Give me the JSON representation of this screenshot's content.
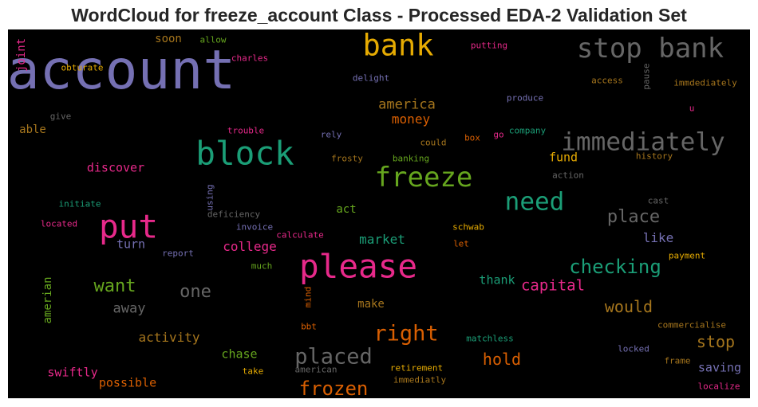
{
  "chart_data": {
    "type": "wordcloud",
    "title": "WordCloud for freeze_account Class - Processed EDA-2 Validation Set",
    "background": "#000000",
    "colormap": "Dark2",
    "words": [
      {
        "text": "account",
        "weight": 1.0,
        "color": "#7570b3"
      },
      {
        "text": "please",
        "weight": 0.6,
        "color": "#e7298a"
      },
      {
        "text": "bank",
        "weight": 0.55,
        "color": "#e6ab02"
      },
      {
        "text": "block",
        "weight": 0.6,
        "color": "#1b9e77"
      },
      {
        "text": "stop bank",
        "weight": 0.5,
        "color": "#666666"
      },
      {
        "text": "put",
        "weight": 0.6,
        "color": "#e7298a"
      },
      {
        "text": "freeze",
        "weight": 0.5,
        "color": "#66a61e"
      },
      {
        "text": "immediately",
        "weight": 0.45,
        "color": "#666666"
      },
      {
        "text": "need",
        "weight": 0.45,
        "color": "#1b9e77"
      },
      {
        "text": "right",
        "weight": 0.4,
        "color": "#d95f02"
      },
      {
        "text": "placed",
        "weight": 0.4,
        "color": "#666666"
      },
      {
        "text": "frozen",
        "weight": 0.35,
        "color": "#d95f02"
      },
      {
        "text": "checking",
        "weight": 0.35,
        "color": "#1b9e77"
      },
      {
        "text": "place",
        "weight": 0.32,
        "color": "#666666"
      },
      {
        "text": "want",
        "weight": 0.32,
        "color": "#66a61e"
      },
      {
        "text": "one",
        "weight": 0.32,
        "color": "#666666"
      },
      {
        "text": "hold",
        "weight": 0.3,
        "color": "#d95f02"
      },
      {
        "text": "would",
        "weight": 0.3,
        "color": "#a6761d"
      },
      {
        "text": "stop",
        "weight": 0.3,
        "color": "#a6761d"
      },
      {
        "text": "capital",
        "weight": 0.28,
        "color": "#e7298a"
      },
      {
        "text": "america",
        "weight": 0.25,
        "color": "#a6761d"
      },
      {
        "text": "money",
        "weight": 0.23,
        "color": "#d95f02"
      },
      {
        "text": "fund",
        "weight": 0.22,
        "color": "#e6ab02"
      },
      {
        "text": "like",
        "weight": 0.23,
        "color": "#7570b3"
      },
      {
        "text": "market",
        "weight": 0.23,
        "color": "#1b9e77"
      },
      {
        "text": "college",
        "weight": 0.23,
        "color": "#e7298a"
      },
      {
        "text": "turn",
        "weight": 0.22,
        "color": "#7570b3"
      },
      {
        "text": "away",
        "weight": 0.25,
        "color": "#666666"
      },
      {
        "text": "discover",
        "weight": 0.22,
        "color": "#e7298a"
      },
      {
        "text": "activity",
        "weight": 0.23,
        "color": "#a6761d"
      },
      {
        "text": "chase",
        "weight": 0.22,
        "color": "#66a61e"
      },
      {
        "text": "swiftly",
        "weight": 0.22,
        "color": "#e7298a"
      },
      {
        "text": "possible",
        "weight": 0.22,
        "color": "#d95f02"
      },
      {
        "text": "thank",
        "weight": 0.22,
        "color": "#1b9e77"
      },
      {
        "text": "make",
        "weight": 0.2,
        "color": "#a6761d"
      },
      {
        "text": "act",
        "weight": 0.2,
        "color": "#66a61e"
      },
      {
        "text": "saving",
        "weight": 0.22,
        "color": "#7570b3"
      },
      {
        "text": "able",
        "weight": 0.2,
        "color": "#a6761d"
      },
      {
        "text": "soon",
        "weight": 0.2,
        "color": "#a6761d"
      },
      {
        "text": "amerian",
        "weight": 0.2,
        "color": "#66a61e",
        "rotate": true
      },
      {
        "text": "joint",
        "weight": 0.2,
        "color": "#e7298a",
        "rotate": true
      },
      {
        "text": "obturate",
        "weight": 0.15,
        "color": "#e6ab02"
      },
      {
        "text": "allow",
        "weight": 0.15,
        "color": "#66a61e"
      },
      {
        "text": "charles",
        "weight": 0.15,
        "color": "#e7298a"
      },
      {
        "text": "delight",
        "weight": 0.14,
        "color": "#7570b3"
      },
      {
        "text": "putting",
        "weight": 0.15,
        "color": "#e7298a"
      },
      {
        "text": "access",
        "weight": 0.14,
        "color": "#a6761d"
      },
      {
        "text": "pause",
        "weight": 0.14,
        "color": "#666666",
        "rotate": true
      },
      {
        "text": "immdediately",
        "weight": 0.14,
        "color": "#a6761d"
      },
      {
        "text": "produce",
        "weight": 0.15,
        "color": "#7570b3"
      },
      {
        "text": "u",
        "weight": 0.15,
        "color": "#e7298a"
      },
      {
        "text": "give",
        "weight": 0.14,
        "color": "#666666"
      },
      {
        "text": "trouble",
        "weight": 0.15,
        "color": "#e7298a"
      },
      {
        "text": "rely",
        "weight": 0.15,
        "color": "#7570b3"
      },
      {
        "text": "could",
        "weight": 0.15,
        "color": "#a6761d"
      },
      {
        "text": "box",
        "weight": 0.15,
        "color": "#d95f02"
      },
      {
        "text": "go",
        "weight": 0.15,
        "color": "#e7298a"
      },
      {
        "text": "company",
        "weight": 0.14,
        "color": "#1b9e77"
      },
      {
        "text": "history",
        "weight": 0.14,
        "color": "#a6761d"
      },
      {
        "text": "frosty",
        "weight": 0.15,
        "color": "#a6761d"
      },
      {
        "text": "banking",
        "weight": 0.14,
        "color": "#66a61e"
      },
      {
        "text": "action",
        "weight": 0.14,
        "color": "#666666"
      },
      {
        "text": "initiate",
        "weight": 0.14,
        "color": "#1b9e77"
      },
      {
        "text": "using",
        "weight": 0.13,
        "color": "#7570b3",
        "rotate": true
      },
      {
        "text": "cast",
        "weight": 0.14,
        "color": "#666666"
      },
      {
        "text": "deficiency",
        "weight": 0.14,
        "color": "#666666"
      },
      {
        "text": "invoice",
        "weight": 0.14,
        "color": "#7570b3"
      },
      {
        "text": "located",
        "weight": 0.14,
        "color": "#e7298a"
      },
      {
        "text": "calculate",
        "weight": 0.14,
        "color": "#e7298a"
      },
      {
        "text": "schwab",
        "weight": 0.14,
        "color": "#e6ab02"
      },
      {
        "text": "let",
        "weight": 0.14,
        "color": "#d95f02"
      },
      {
        "text": "report",
        "weight": 0.14,
        "color": "#7570b3"
      },
      {
        "text": "much",
        "weight": 0.13,
        "color": "#66a61e"
      },
      {
        "text": "payment",
        "weight": 0.14,
        "color": "#e6ab02"
      },
      {
        "text": "mind",
        "weight": 0.13,
        "color": "#d95f02",
        "rotate": true
      },
      {
        "text": "bbt",
        "weight": 0.14,
        "color": "#d95f02"
      },
      {
        "text": "matchless",
        "weight": 0.14,
        "color": "#1b9e77"
      },
      {
        "text": "commercialise",
        "weight": 0.14,
        "color": "#a6761d"
      },
      {
        "text": "locked",
        "weight": 0.14,
        "color": "#7570b3"
      },
      {
        "text": "frame",
        "weight": 0.14,
        "color": "#a6761d"
      },
      {
        "text": "take",
        "weight": 0.14,
        "color": "#e6ab02"
      },
      {
        "text": "american",
        "weight": 0.13,
        "color": "#666666"
      },
      {
        "text": "retirement",
        "weight": 0.14,
        "color": "#e6ab02"
      },
      {
        "text": "immediatly",
        "weight": 0.13,
        "color": "#a6761d"
      },
      {
        "text": "localize",
        "weight": 0.14,
        "color": "#e7298a"
      }
    ]
  }
}
